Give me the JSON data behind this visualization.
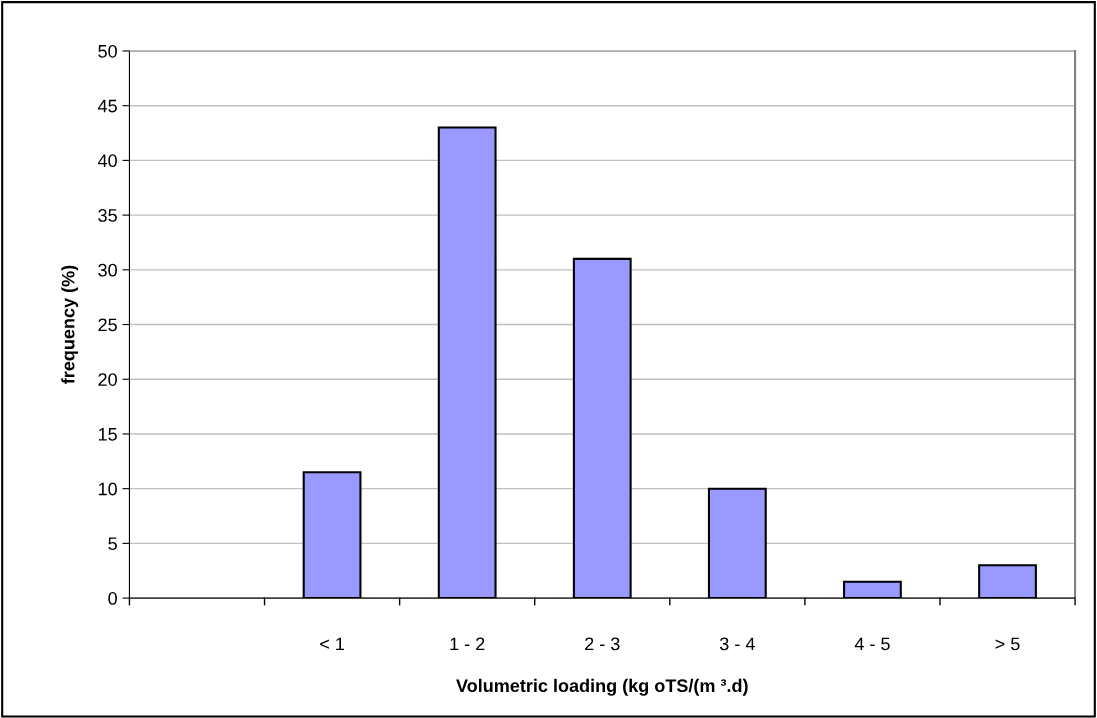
{
  "chart_data": {
    "type": "bar",
    "xlabel": "Volumetric loading (kg oTS/(m ³.d)",
    "ylabel": "frequency (%)",
    "categories": [
      null,
      "< 1",
      "1 - 2",
      "2 - 3",
      "3 - 4",
      "4 - 5",
      "> 5"
    ],
    "values": [
      null,
      11.5,
      43,
      31,
      10,
      1.5,
      3
    ],
    "color": "#9999ff",
    "ylim": [
      0,
      50
    ],
    "yticks": [
      0,
      5,
      10,
      15,
      20,
      25,
      30,
      35,
      40,
      45,
      50
    ],
    "grid": "y"
  }
}
